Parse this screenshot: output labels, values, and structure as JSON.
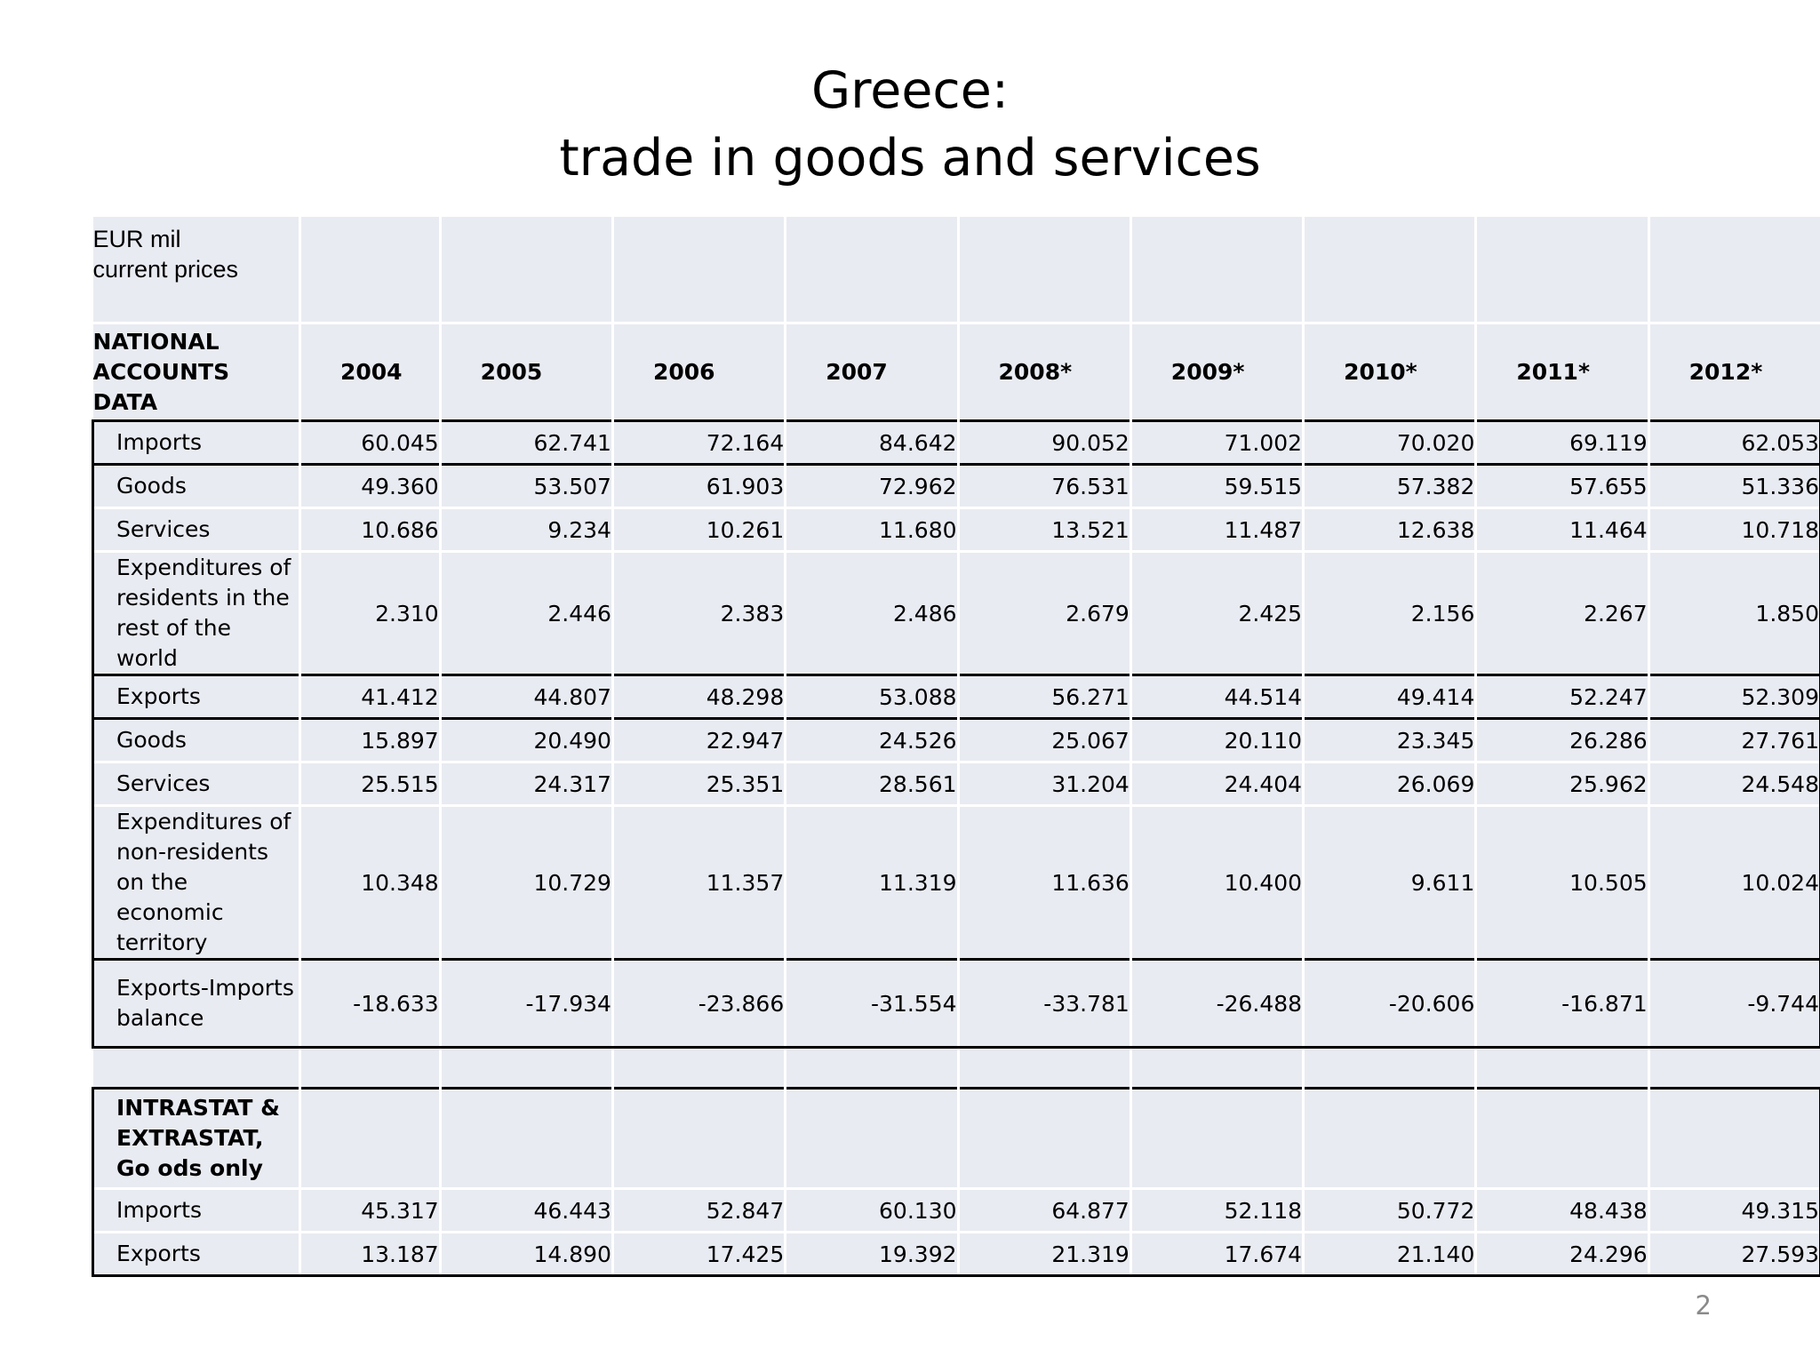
{
  "title": {
    "line1": "Greece:",
    "line2": "trade in goods and services"
  },
  "table": {
    "unit_line1": "EUR mil",
    "unit_line2": "current prices",
    "header_label": "NATIONAL ACCOUNTS DATA",
    "years": [
      "2004",
      "2005",
      "2006",
      "2007",
      "2008*",
      "2009*",
      "2010*",
      "2011*",
      "2012*"
    ],
    "national_accounts": [
      {
        "label": "Imports",
        "values": [
          "60.045",
          "62.741",
          "72.164",
          "84.642",
          "90.052",
          "71.002",
          "70.020",
          "69.119",
          "62.053"
        ]
      },
      {
        "label": "Goods",
        "values": [
          "49.360",
          "53.507",
          "61.903",
          "72.962",
          "76.531",
          "59.515",
          "57.382",
          "57.655",
          "51.336"
        ]
      },
      {
        "label": "Services",
        "values": [
          "10.686",
          "9.234",
          "10.261",
          "11.680",
          "13.521",
          "11.487",
          "12.638",
          "11.464",
          "10.718"
        ]
      },
      {
        "label": "Expenditures of residents in the rest of the world",
        "values": [
          "2.310",
          "2.446",
          "2.383",
          "2.486",
          "2.679",
          "2.425",
          "2.156",
          "2.267",
          "1.850"
        ]
      },
      {
        "label": "Exports",
        "values": [
          "41.412",
          "44.807",
          "48.298",
          "53.088",
          "56.271",
          "44.514",
          "49.414",
          "52.247",
          "52.309"
        ]
      },
      {
        "label": "Goods",
        "values": [
          "15.897",
          "20.490",
          "22.947",
          "24.526",
          "25.067",
          "20.110",
          "23.345",
          "26.286",
          "27.761"
        ]
      },
      {
        "label": "Services",
        "values": [
          "25.515",
          "24.317",
          "25.351",
          "28.561",
          "31.204",
          "24.404",
          "26.069",
          "25.962",
          "24.548"
        ]
      },
      {
        "label": "Expenditures of non-residents on the economic territory",
        "values": [
          "10.348",
          "10.729",
          "11.357",
          "11.319",
          "11.636",
          "10.400",
          "9.611",
          "10.505",
          "10.024"
        ]
      },
      {
        "label": "Exports-Imports balance",
        "values": [
          "-18.633",
          "-17.934",
          "-23.866",
          "-31.554",
          "-33.781",
          "-26.488",
          "-20.606",
          "-16.871",
          "-9.744"
        ]
      }
    ],
    "intrastat_label": "INTRASTAT & EXTRASTAT, Go ods only",
    "intrastat": [
      {
        "label": "Imports",
        "values": [
          "45.317",
          "46.443",
          "52.847",
          "60.130",
          "64.877",
          "52.118",
          "50.772",
          "48.438",
          "49.315"
        ]
      },
      {
        "label": "Exports",
        "values": [
          "13.187",
          "14.890",
          "17.425",
          "19.392",
          "21.319",
          "17.674",
          "21.140",
          "24.296",
          "27.593"
        ]
      }
    ]
  },
  "page_number": "2"
}
